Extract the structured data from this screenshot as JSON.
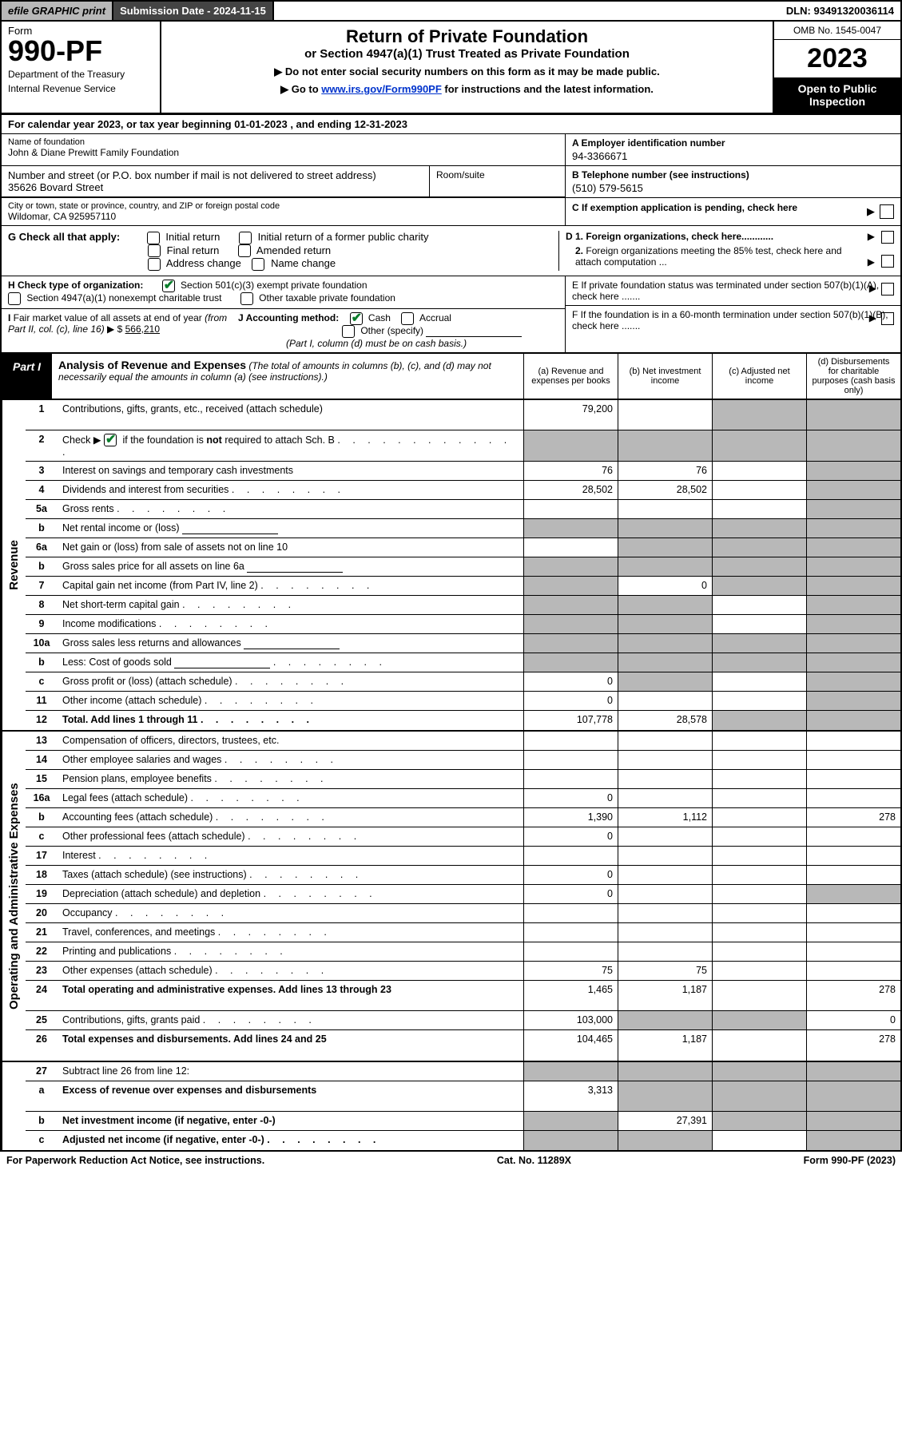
{
  "top_bar": {
    "efile": "efile GRAPHIC print",
    "sub_date_label": "Submission Date - 2024-11-15",
    "dln": "DLN: 93491320036114"
  },
  "form_header": {
    "form_label": "Form",
    "form_no": "990-PF",
    "dept1": "Department of the Treasury",
    "dept2": "Internal Revenue Service",
    "title": "Return of Private Foundation",
    "sub1": "or Section 4947(a)(1) Trust Treated as Private Foundation",
    "sub2a": "▶ Do not enter social security numbers on this form as it may be made public.",
    "sub2b_pre": "▶ Go to ",
    "sub2b_link": "www.irs.gov/Form990PF",
    "sub2b_post": " for instructions and the latest information.",
    "omb": "OMB No. 1545-0047",
    "year": "2023",
    "open": "Open to Public Inspection"
  },
  "cal_year": "For calendar year 2023, or tax year beginning 01-01-2023                    , and ending 12-31-2023",
  "identity": {
    "name_lbl": "Name of foundation",
    "name": "John & Diane Prewitt Family Foundation",
    "ein_lbl": "A Employer identification number",
    "ein": "94-3366671",
    "addr_lbl": "Number and street (or P.O. box number if mail is not delivered to street address)",
    "addr": "35626 Bovard Street",
    "room_lbl": "Room/suite",
    "phone_lbl": "B Telephone number (see instructions)",
    "phone": "(510) 579-5615",
    "city_lbl": "City or town, state or province, country, and ZIP or foreign postal code",
    "city": "Wildomar, CA  925957110",
    "c_lbl": "C If exemption application is pending, check here"
  },
  "g": {
    "label": "G Check all that apply:",
    "opts": [
      "Initial return",
      "Initial return of a former public charity",
      "Final return",
      "Amended return",
      "Address change",
      "Name change"
    ],
    "d1": "D 1. Foreign organizations, check here............",
    "d2": "2. Foreign organizations meeting the 85% test, check here and attach computation ..."
  },
  "h": {
    "label": "H Check type of organization:",
    "opt1": "Section 501(c)(3) exempt private foundation",
    "opt2": "Section 4947(a)(1) nonexempt charitable trust",
    "opt3": "Other taxable private foundation",
    "e_lbl": "E  If private foundation status was terminated under section 507(b)(1)(A), check here ......."
  },
  "i": {
    "label": "I Fair market value of all assets at end of year (from Part II, col. (c), line 16) ▶ $",
    "value": "566,210",
    "j_label": "J Accounting method:",
    "j1": "Cash",
    "j2": "Accrual",
    "j3": "Other (specify)",
    "j_note": "(Part I, column (d) must be on cash basis.)",
    "f_lbl": "F  If the foundation is in a 60-month termination under section 507(b)(1)(B), check here ......."
  },
  "part1": {
    "label": "Part I",
    "title": "Analysis of Revenue and Expenses",
    "note": "(The total of amounts in columns (b), (c), and (d) may not necessarily equal the amounts in column (a) (see instructions).)",
    "cols": {
      "a": "(a)   Revenue and expenses per books",
      "b": "(b)   Net investment income",
      "c": "(c)   Adjusted net income",
      "d": "(d)  Disbursements for charitable purposes (cash basis only)"
    }
  },
  "sections": {
    "revenue": "Revenue",
    "expenses": "Operating and Administrative Expenses"
  },
  "rows": {
    "r1": {
      "n": "1",
      "d": "Contributions, gifts, grants, etc., received (attach schedule)",
      "a": "79,200"
    },
    "r2": {
      "n": "2",
      "d": "Check ▶ ☑ if the foundation is not required to attach Sch. B"
    },
    "r3": {
      "n": "3",
      "d": "Interest on savings and temporary cash investments",
      "a": "76",
      "b": "76"
    },
    "r4": {
      "n": "4",
      "d": "Dividends and interest from securities",
      "a": "28,502",
      "b": "28,502"
    },
    "r5a": {
      "n": "5a",
      "d": "Gross rents"
    },
    "r5b": {
      "n": "b",
      "d": "Net rental income or (loss)"
    },
    "r6a": {
      "n": "6a",
      "d": "Net gain or (loss) from sale of assets not on line 10"
    },
    "r6b": {
      "n": "b",
      "d": "Gross sales price for all assets on line 6a"
    },
    "r7": {
      "n": "7",
      "d": "Capital gain net income (from Part IV, line 2)",
      "b": "0"
    },
    "r8": {
      "n": "8",
      "d": "Net short-term capital gain"
    },
    "r9": {
      "n": "9",
      "d": "Income modifications"
    },
    "r10a": {
      "n": "10a",
      "d": "Gross sales less returns and allowances"
    },
    "r10b": {
      "n": "b",
      "d": "Less: Cost of goods sold"
    },
    "r10c": {
      "n": "c",
      "d": "Gross profit or (loss) (attach schedule)",
      "a": "0"
    },
    "r11": {
      "n": "11",
      "d": "Other income (attach schedule)",
      "a": "0"
    },
    "r12": {
      "n": "12",
      "d": "Total. Add lines 1 through 11",
      "a": "107,778",
      "b": "28,578",
      "bold": true
    },
    "r13": {
      "n": "13",
      "d": "Compensation of officers, directors, trustees, etc."
    },
    "r14": {
      "n": "14",
      "d": "Other employee salaries and wages"
    },
    "r15": {
      "n": "15",
      "d": "Pension plans, employee benefits"
    },
    "r16a": {
      "n": "16a",
      "d": "Legal fees (attach schedule)",
      "a": "0"
    },
    "r16b": {
      "n": "b",
      "d": "Accounting fees (attach schedule)",
      "a": "1,390",
      "b": "1,112",
      "dd": "278"
    },
    "r16c": {
      "n": "c",
      "d": "Other professional fees (attach schedule)",
      "a": "0"
    },
    "r17": {
      "n": "17",
      "d": "Interest"
    },
    "r18": {
      "n": "18",
      "d": "Taxes (attach schedule) (see instructions)",
      "a": "0"
    },
    "r19": {
      "n": "19",
      "d": "Depreciation (attach schedule) and depletion",
      "a": "0"
    },
    "r20": {
      "n": "20",
      "d": "Occupancy"
    },
    "r21": {
      "n": "21",
      "d": "Travel, conferences, and meetings"
    },
    "r22": {
      "n": "22",
      "d": "Printing and publications"
    },
    "r23": {
      "n": "23",
      "d": "Other expenses (attach schedule)",
      "a": "75",
      "b": "75"
    },
    "r24": {
      "n": "24",
      "d": "Total operating and administrative expenses. Add lines 13 through 23",
      "a": "1,465",
      "b": "1,187",
      "dd": "278",
      "bold": true
    },
    "r25": {
      "n": "25",
      "d": "Contributions, gifts, grants paid",
      "a": "103,000",
      "dd": "0"
    },
    "r26": {
      "n": "26",
      "d": "Total expenses and disbursements. Add lines 24 and 25",
      "a": "104,465",
      "b": "1,187",
      "dd": "278",
      "bold": true
    },
    "r27": {
      "n": "27",
      "d": "Subtract line 26 from line 12:"
    },
    "r27a": {
      "n": "a",
      "d": "Excess of revenue over expenses and disbursements",
      "a": "3,313",
      "bold": true
    },
    "r27b": {
      "n": "b",
      "d": "Net investment income (if negative, enter -0-)",
      "b": "27,391",
      "bold": true
    },
    "r27c": {
      "n": "c",
      "d": "Adjusted net income (if negative, enter -0-)",
      "bold": true
    }
  },
  "gray_map": {
    "r1": {
      "c": true,
      "d": true
    },
    "r2": {
      "a": true,
      "b": true,
      "c": true,
      "d": true
    },
    "r3": {
      "d": true
    },
    "r4": {
      "d": true
    },
    "r5a": {
      "d": true
    },
    "r5b": {
      "a": true,
      "b": true,
      "c": true,
      "d": true
    },
    "r6a": {
      "b": true,
      "c": true,
      "d": true
    },
    "r6b": {
      "a": true,
      "b": true,
      "c": true,
      "d": true
    },
    "r7": {
      "a": true,
      "c": true,
      "d": true
    },
    "r8": {
      "a": true,
      "b": true,
      "d": true
    },
    "r9": {
      "a": true,
      "b": true,
      "d": true
    },
    "r10a": {
      "a": true,
      "b": true,
      "c": true,
      "d": true
    },
    "r10b": {
      "a": true,
      "b": true,
      "c": true,
      "d": true
    },
    "r10c": {
      "b": true,
      "d": true
    },
    "r11": {
      "d": true
    },
    "r12": {
      "c": true,
      "d": true
    },
    "r19": {
      "d": true
    },
    "r25": {
      "b": true,
      "c": true
    },
    "r27": {
      "a": true,
      "b": true,
      "c": true,
      "d": true
    },
    "r27a": {
      "b": true,
      "c": true,
      "d": true
    },
    "r27b": {
      "a": true,
      "c": true,
      "d": true
    },
    "r27c": {
      "a": true,
      "b": true,
      "d": true
    }
  },
  "footer": {
    "left": "For Paperwork Reduction Act Notice, see instructions.",
    "mid": "Cat. No. 11289X",
    "right": "Form 990-PF (2023)"
  },
  "colors": {
    "gray": "#b8b8b8",
    "darkgray": "#444",
    "green_check": "#0a7d2b",
    "link": "#0033cc"
  }
}
